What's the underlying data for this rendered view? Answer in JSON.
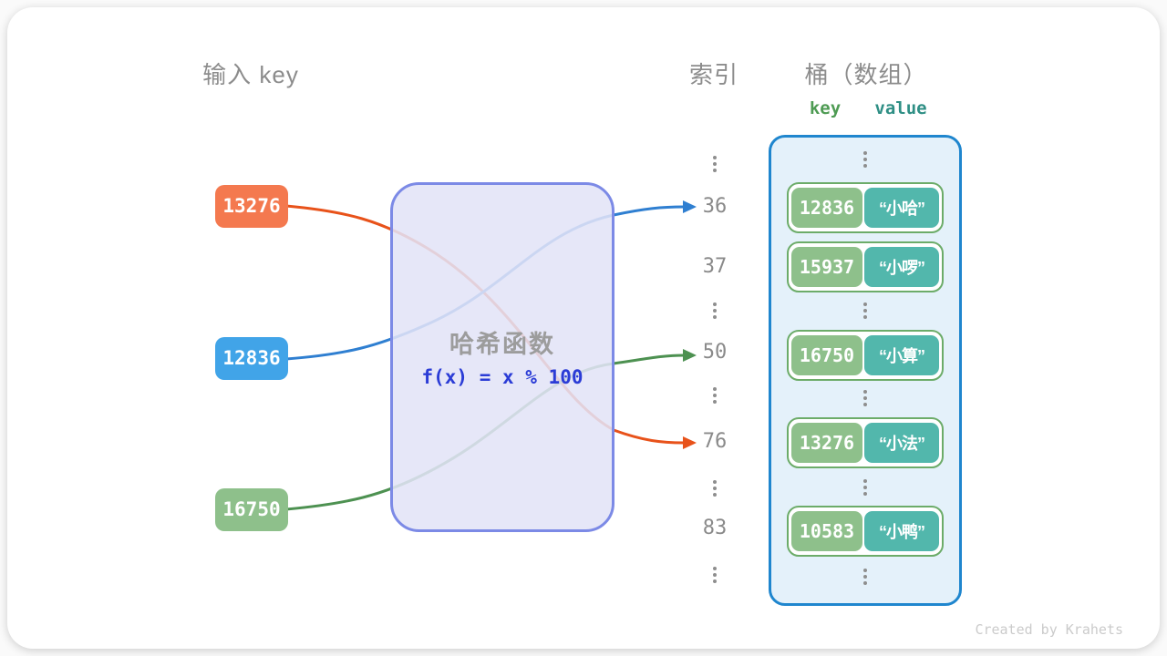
{
  "page": {
    "footer": "Created by Krahets"
  },
  "headers": {
    "input_title": "输入 key",
    "index_title": "索引",
    "bucket_title": "桶（数组）",
    "key_label": "key",
    "value_label": "value"
  },
  "hash_function": {
    "name": "哈希函数",
    "formula": "f(x) = x % 100"
  },
  "input_keys": [
    {
      "label": "13276",
      "box_color": "#f4794f",
      "line_color": "#e8521a",
      "maps_to_index": "76"
    },
    {
      "label": "12836",
      "box_color": "#41a4e8",
      "line_color": "#2f7fd1",
      "maps_to_index": "36"
    },
    {
      "label": "16750",
      "box_color": "#8ec08b",
      "line_color": "#4d9151",
      "maps_to_index": "50"
    }
  ],
  "index_column": [
    "36",
    "37",
    "50",
    "76",
    "83"
  ],
  "bucket_pairs": [
    {
      "key": "12836",
      "value": "“小哈”"
    },
    {
      "key": "15937",
      "value": "“小啰”"
    },
    {
      "key": "16750",
      "value": "“小算”"
    },
    {
      "key": "13276",
      "value": "“小法”"
    },
    {
      "key": "10583",
      "value": "“小鸭”"
    }
  ],
  "colors": {
    "key_box_green": "#8ec08b",
    "value_box_teal": "#52b7ac",
    "pair_border_green": "#6cac69",
    "bucket_border_blue": "#1f86ce",
    "bucket_fill": "#e4f1fa",
    "hash_box_border": "#7c8ae6",
    "hash_box_fill": "#e2e4f7",
    "formula_blue": "#2b3cd6",
    "title_gray": "#8c8c8c",
    "key_header_green": "#4e9b53",
    "value_header_teal": "#2f8f85"
  }
}
